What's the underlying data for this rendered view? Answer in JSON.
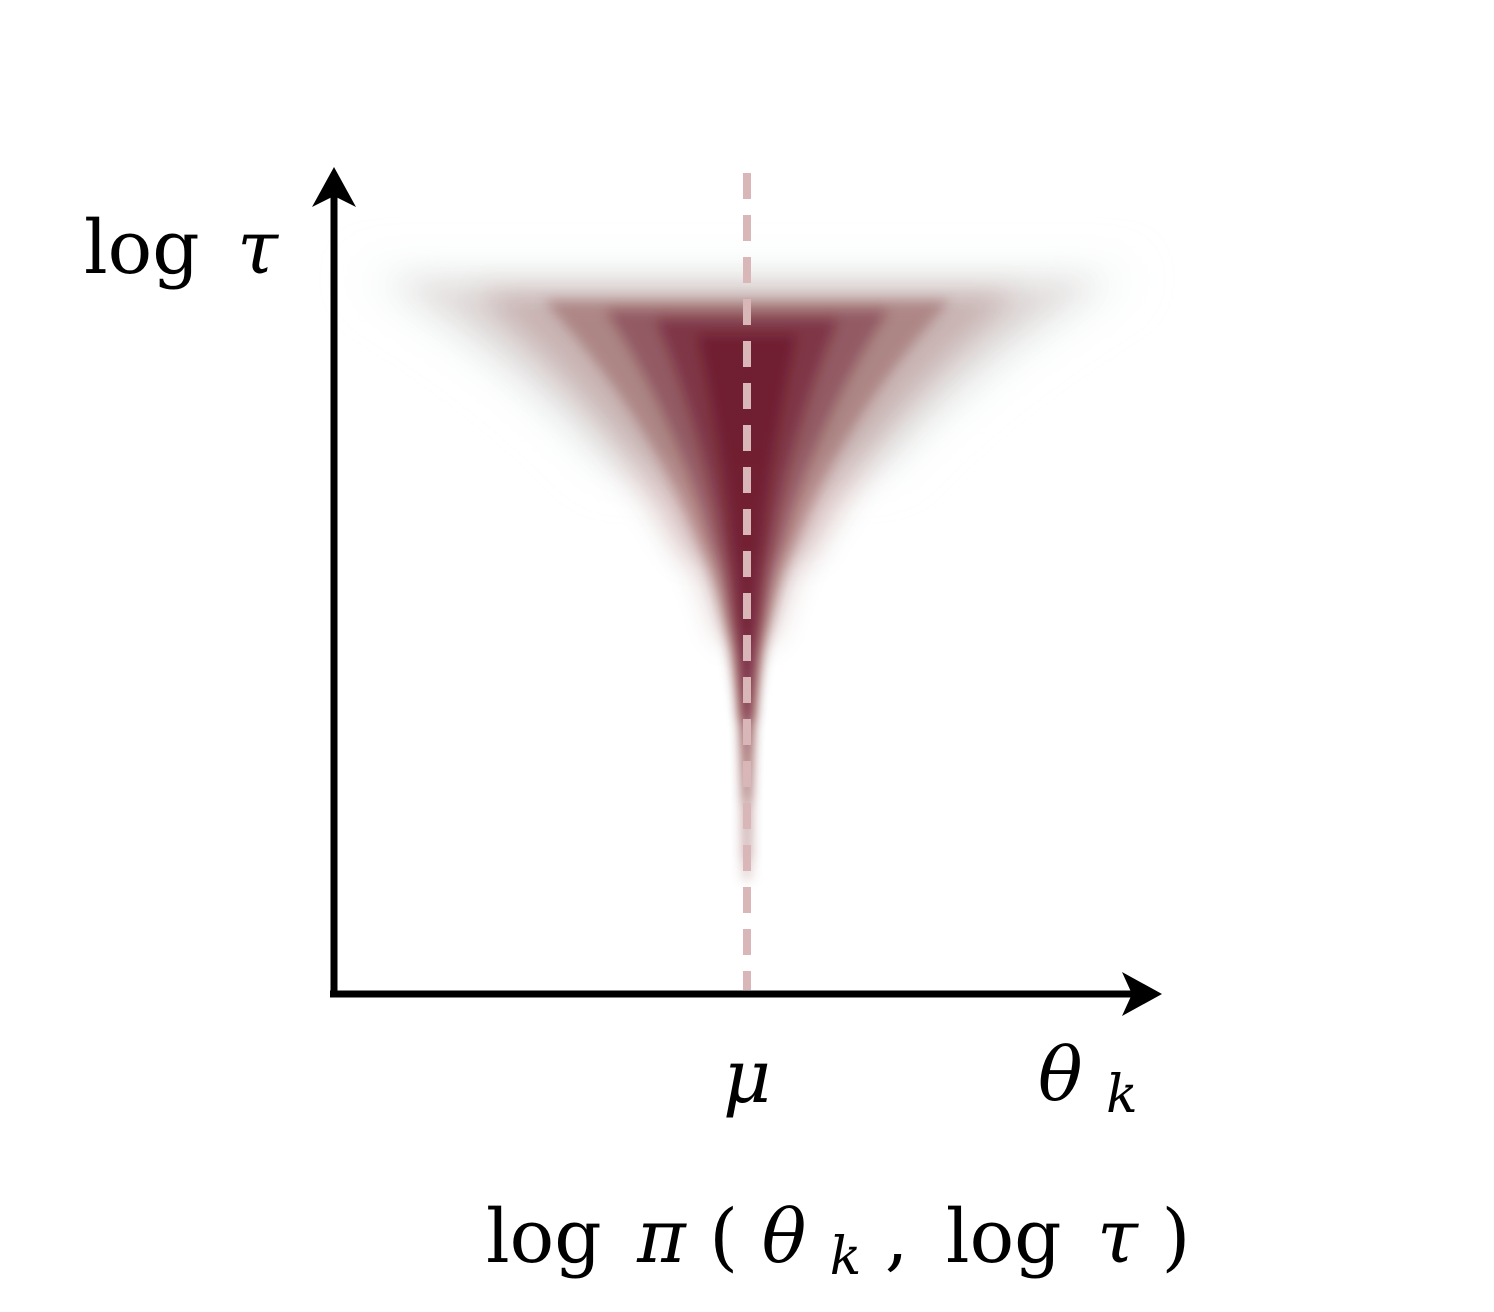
{
  "figure": {
    "y_axis_label": {
      "fn": "log",
      "var": "τ"
    },
    "x_axis_label": {
      "var": "θ",
      "sub": "k"
    },
    "mu_label": "μ",
    "caption": {
      "log1": "log",
      "pi": "π",
      "open": "(",
      "theta": "θ",
      "sub": "k",
      "comma": ",",
      "log2": "log",
      "tau": "τ",
      "close": ")"
    }
  },
  "colors": {
    "axis": "#000000",
    "density": "#5e0a12",
    "density_edge": "#dfe7e6",
    "mean_line": "#d9b7b9"
  }
}
